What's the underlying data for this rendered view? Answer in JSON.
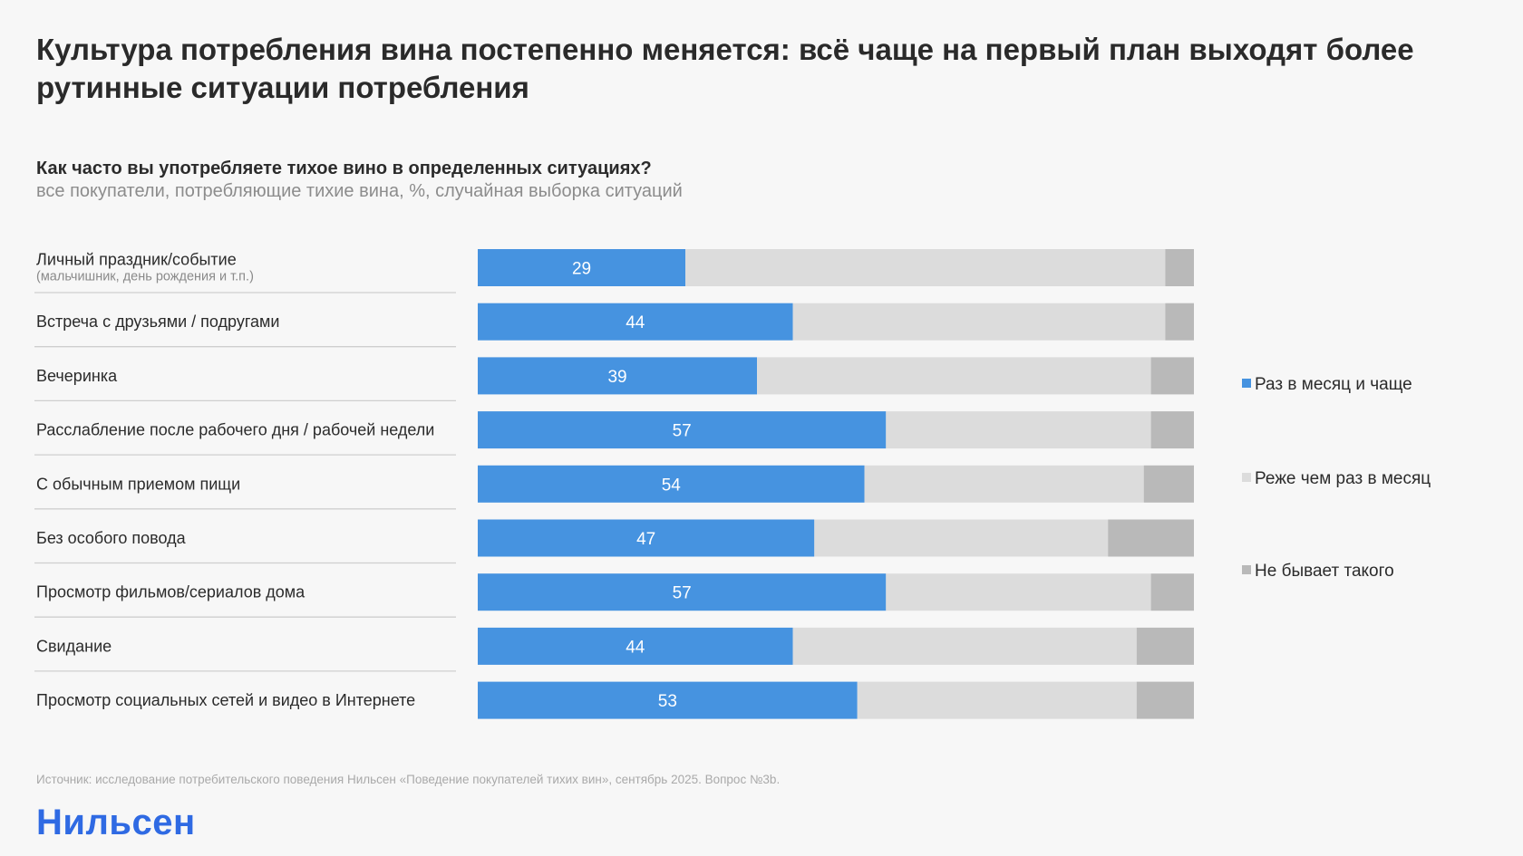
{
  "header": {
    "title": "Культура потребления вина постепенно меняется: всё чаще на первый план выходят более рутинные ситуации потребления",
    "question": "Как часто вы употребляете тихое вино в определенных ситуациях?",
    "base": "все покупатели, потребляющие тихие вина, %, случайная выборка ситуаций"
  },
  "colors": {
    "monthly": "#4693e0",
    "rarely": "#dcdcdc",
    "never": "#b9b9b9",
    "divider": "#cfcfcf",
    "brand": "#2f6ae3"
  },
  "chart_data": {
    "type": "bar",
    "orientation": "horizontal",
    "stacked": true,
    "unit": "%",
    "title": "Как часто вы употребляете тихое вино в определенных ситуациях?",
    "subtitle": "все покупатели, потребляющие тихие вина, %, случайная выборка ситуаций",
    "xlim": [
      0,
      100
    ],
    "grid": false,
    "legend_position": "right",
    "categories": [
      {
        "label": "Личный праздник/событие",
        "sublabel": "(мальчишник, день рождения и т.п.)"
      },
      {
        "label": "Встреча с друзьями / подругами",
        "sublabel": ""
      },
      {
        "label": "Вечеринка",
        "sublabel": ""
      },
      {
        "label": "Расслабление после рабочего дня / рабочей недели",
        "sublabel": ""
      },
      {
        "label": "С обычным приемом пищи",
        "sublabel": ""
      },
      {
        "label": "Без особого повода",
        "sublabel": ""
      },
      {
        "label": "Просмотр фильмов/сериалов дома",
        "sublabel": ""
      },
      {
        "label": "Свидание",
        "sublabel": ""
      },
      {
        "label": "Просмотр социальных сетей и видео в Интернете",
        "sublabel": ""
      }
    ],
    "series": [
      {
        "key": "monthly",
        "name": "Раз в месяц и чаще",
        "labeled": true,
        "values": [
          29,
          44,
          39,
          57,
          54,
          47,
          57,
          44,
          53
        ]
      },
      {
        "key": "rarely",
        "name": "Реже чем раз в месяц",
        "labeled": false,
        "values": [
          67,
          52,
          55,
          37,
          39,
          41,
          37,
          48,
          39
        ]
      },
      {
        "key": "never",
        "name": "Не бывает такого",
        "labeled": false,
        "values": [
          4,
          4,
          6,
          6,
          7,
          12,
          6,
          8,
          8
        ]
      }
    ]
  },
  "footer": {
    "source": "Источник: исследование потребительского поведения Нильсен «Поведение покупателей тихих вин», сентябрь 2025. Вопрос №3b.",
    "logo": "Нильсен"
  }
}
